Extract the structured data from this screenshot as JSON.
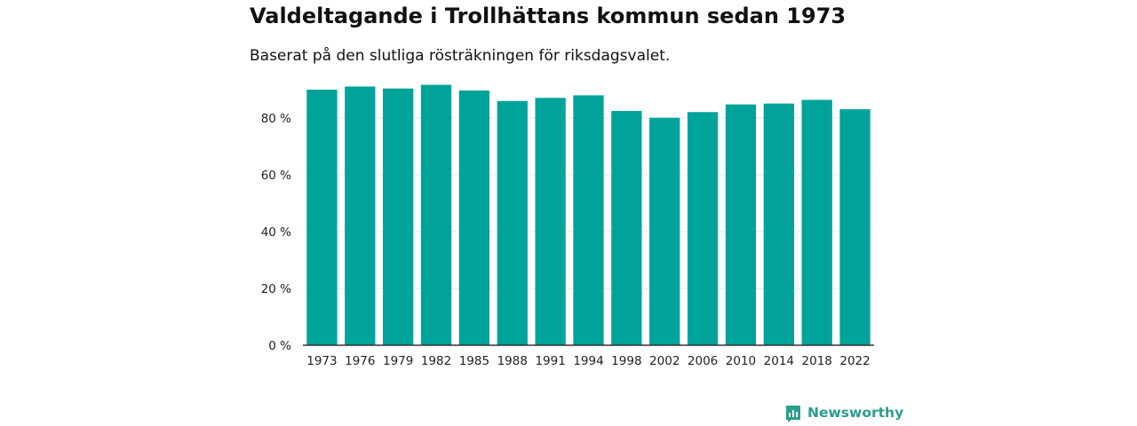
{
  "colors": {
    "bar": "#00A39A",
    "brand": "#2A9D8F",
    "grid": "#E5E5E5",
    "axis": "#333333"
  },
  "brand": {
    "name": "Newsworthy",
    "icon": "bar-chart-logo-icon"
  },
  "chart_data": {
    "type": "bar",
    "title": "Valdeltagande i Trollhättans kommun sedan 1973",
    "subtitle": "Baserat på den slutliga rösträkningen för riksdagsvalet.",
    "xlabel": "",
    "ylabel": "",
    "ylim": [
      0,
      95
    ],
    "yticks": [
      0,
      20,
      40,
      60,
      80
    ],
    "ytick_labels": [
      "0 %",
      "20 %",
      "40 %",
      "60 %",
      "80 %"
    ],
    "grid": true,
    "categories": [
      "1973",
      "1976",
      "1979",
      "1982",
      "1985",
      "1988",
      "1991",
      "1994",
      "1998",
      "2002",
      "2006",
      "2010",
      "2014",
      "2018",
      "2022"
    ],
    "values": [
      90.0,
      91.1,
      90.4,
      91.7,
      89.7,
      86.0,
      87.1,
      88.0,
      82.5,
      80.1,
      82.1,
      84.8,
      85.1,
      86.4,
      83.1
    ]
  }
}
